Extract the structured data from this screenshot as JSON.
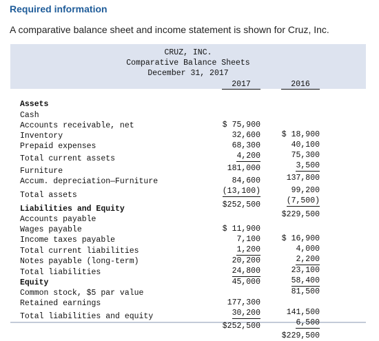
{
  "required_label": "Required information",
  "intro_text": "A comparative balance sheet and income statement is shown for Cruz, Inc.",
  "header": {
    "company": "CRUZ, INC.",
    "statement": "Comparative Balance Sheets",
    "date": "December 31, 2017",
    "year1": "2017",
    "year2": "2016"
  },
  "rows": [
    {
      "label": "Assets",
      "v2017": "",
      "v2016": ""
    },
    {
      "label": "Cash",
      "v2017": "$ 75,900",
      "v2016": "$ 18,900"
    },
    {
      "label": "Accounts receivable, net",
      "v2017": "32,600",
      "v2016": "40,100"
    },
    {
      "label": "Inventory",
      "v2017": "68,300",
      "v2016": "75,300"
    },
    {
      "label": "Prepaid expenses",
      "v2017": "4,200",
      "v2016": "3,500"
    },
    {
      "label": "Total current assets",
      "v2017": "181,000",
      "v2016": "137,800"
    },
    {
      "label": "Furniture",
      "v2017": "84,600",
      "v2016": "99,200"
    },
    {
      "label": "Accum. depreciation—Furniture",
      "v2017": "(13,100)",
      "v2016": "(7,500)"
    },
    {
      "label": "Total assets",
      "v2017": "$252,500",
      "v2016": "$229,500"
    },
    {
      "label": "Liabilities and Equity",
      "v2017": "",
      "v2016": ""
    },
    {
      "label": "Accounts payable",
      "v2017": "$ 11,900",
      "v2016": "$ 16,900"
    },
    {
      "label": "Wages payable",
      "v2017": "7,100",
      "v2016": "4,000"
    },
    {
      "label": "Income taxes payable",
      "v2017": "1,200",
      "v2016": "2,200"
    },
    {
      "label": "Total current liabilities",
      "v2017": "20,200",
      "v2016": "23,100"
    },
    {
      "label": "Notes payable (long-term)",
      "v2017": "24,800",
      "v2016": "58,400"
    },
    {
      "label": "Total liabilities",
      "v2017": "45,000",
      "v2016": "81,500"
    },
    {
      "label": "Equity",
      "v2017": "",
      "v2016": ""
    },
    {
      "label": "Common stock, $5 par value",
      "v2017": "177,300",
      "v2016": "141,500"
    },
    {
      "label": "Retained earnings",
      "v2017": "30,200",
      "v2016": "6,500"
    },
    {
      "label": "Total liabilities and equity",
      "v2017": "$252,500",
      "v2016": "$229,500"
    }
  ]
}
